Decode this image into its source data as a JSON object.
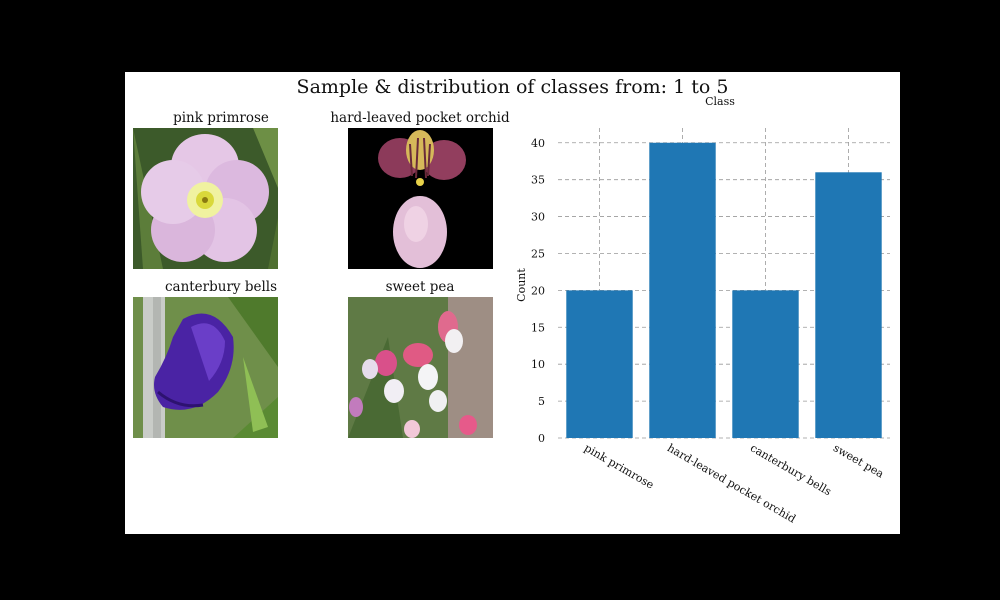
{
  "figure": {
    "suptitle": "Sample & distribution of classes from: 1 to 5"
  },
  "samples": [
    {
      "label": "pink primrose",
      "image": "pink-primrose-photo"
    },
    {
      "label": "hard-leaved pocket orchid",
      "image": "pocket-orchid-photo"
    },
    {
      "label": "canterbury bells",
      "image": "canterbury-bells-photo"
    },
    {
      "label": "sweet pea",
      "image": "sweet-pea-photo"
    }
  ],
  "chart_data": {
    "type": "bar",
    "title": "Class",
    "xlabel": "",
    "ylabel": "Count",
    "categories": [
      "pink primrose",
      "hard-leaved pocket orchid",
      "canterbury bells",
      "sweet pea"
    ],
    "values": [
      20,
      40,
      20,
      36
    ],
    "ylim": [
      0,
      42
    ],
    "yticks": [
      0,
      5,
      10,
      15,
      20,
      25,
      30,
      35,
      40
    ],
    "grid": true,
    "bar_color": "#1f77b4"
  }
}
